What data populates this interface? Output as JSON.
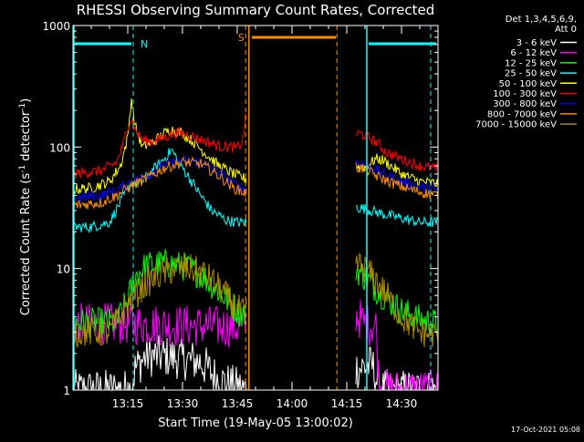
{
  "chart_data": {
    "type": "line",
    "title": "RHESSI Observing Summary Count Rates, Corrected",
    "xlabel": "Start Time (19-May-05 13:00:02)",
    "ylabel_parts": {
      "main": "Corrected Count Rate (s",
      "sup": "-1",
      "mid": " detector",
      "sup2": "-1",
      "end": ")"
    },
    "yscale": "log",
    "ylim": [
      1,
      1000
    ],
    "xlim_minutes": [
      0,
      100
    ],
    "x_ticks": [
      {
        "m": 15,
        "label": "13:15"
      },
      {
        "m": 30,
        "label": "13:30"
      },
      {
        "m": 45,
        "label": "13:45"
      },
      {
        "m": 60,
        "label": "14:00"
      },
      {
        "m": 75,
        "label": "14:15"
      },
      {
        "m": 90,
        "label": "14:30"
      }
    ],
    "y_ticks": [
      {
        "v": 1,
        "label": "1"
      },
      {
        "v": 10,
        "label": "10"
      },
      {
        "v": 100,
        "label": "100"
      },
      {
        "v": 1000,
        "label": "1000"
      }
    ],
    "legend_header": [
      "Det 1,3,4,5,6,9,",
      "Att 0"
    ],
    "legend_position": "top-right, outside plot",
    "gap_minutes": [
      47.5,
      77.5
    ],
    "series": [
      {
        "name": "3 - 6 keV",
        "color": "#ffffff",
        "points": [
          [
            0,
            1.0
          ],
          [
            16,
            1.0
          ],
          [
            17,
            1.5
          ],
          [
            20,
            1.9
          ],
          [
            25,
            1.9
          ],
          [
            30,
            1.8
          ],
          [
            35,
            1.7
          ],
          [
            40,
            1.2
          ],
          [
            47,
            1.0
          ],
          [
            77.5,
            1.5
          ],
          [
            82,
            1.6
          ],
          [
            84,
            1.0
          ],
          [
            100,
            1.0
          ]
        ]
      },
      {
        "name": "6 - 12 keV",
        "color": "#ff00ff",
        "points": [
          [
            0,
            3.5
          ],
          [
            15,
            3.5
          ],
          [
            30,
            3.4
          ],
          [
            45,
            3.3
          ],
          [
            47,
            3.5
          ],
          [
            77.5,
            4.2
          ],
          [
            80,
            3.5
          ],
          [
            83,
            3.4
          ],
          [
            84,
            1.0
          ],
          [
            100,
            1.0
          ]
        ]
      },
      {
        "name": "12 - 25 keV",
        "color": "#00ff00",
        "points": [
          [
            0,
            3.6
          ],
          [
            12,
            3.6
          ],
          [
            15,
            5.5
          ],
          [
            17,
            8.5
          ],
          [
            20,
            10.5
          ],
          [
            25,
            11
          ],
          [
            30,
            10.5
          ],
          [
            35,
            9
          ],
          [
            40,
            6.5
          ],
          [
            45,
            4.5
          ],
          [
            47,
            4.2
          ],
          [
            77.5,
            10
          ],
          [
            80,
            8.5
          ],
          [
            85,
            6
          ],
          [
            90,
            4.5
          ],
          [
            95,
            3.8
          ],
          [
            100,
            3.5
          ]
        ]
      },
      {
        "name": "25 - 50 keV",
        "color": "#00ffff",
        "points": [
          [
            0,
            22
          ],
          [
            5,
            22
          ],
          [
            10,
            24
          ],
          [
            14,
            40
          ],
          [
            16,
            52
          ],
          [
            18,
            48
          ],
          [
            22,
            65
          ],
          [
            25,
            80
          ],
          [
            27,
            95
          ],
          [
            29,
            75
          ],
          [
            32,
            55
          ],
          [
            35,
            40
          ],
          [
            38,
            30
          ],
          [
            42,
            25
          ],
          [
            45,
            24
          ],
          [
            47,
            24
          ],
          [
            77.5,
            32
          ],
          [
            80,
            31
          ],
          [
            85,
            28
          ],
          [
            90,
            26
          ],
          [
            95,
            24
          ],
          [
            100,
            24
          ]
        ]
      },
      {
        "name": "50 - 100 keV",
        "color": "#ffff00",
        "points": [
          [
            0,
            45
          ],
          [
            5,
            46
          ],
          [
            10,
            52
          ],
          [
            13,
            70
          ],
          [
            15,
            120
          ],
          [
            16,
            250
          ],
          [
            17,
            150
          ],
          [
            19,
            100
          ],
          [
            22,
            110
          ],
          [
            25,
            130
          ],
          [
            27,
            140
          ],
          [
            30,
            130
          ],
          [
            33,
            110
          ],
          [
            36,
            90
          ],
          [
            40,
            70
          ],
          [
            44,
            60
          ],
          [
            47,
            55
          ],
          [
            77.5,
            70
          ],
          [
            80,
            68
          ],
          [
            83,
            80
          ],
          [
            85,
            78
          ],
          [
            90,
            60
          ],
          [
            95,
            52
          ],
          [
            100,
            50
          ]
        ]
      },
      {
        "name": "100 - 300 keV",
        "color": "#ff0000",
        "points": [
          [
            0,
            60
          ],
          [
            8,
            64
          ],
          [
            12,
            75
          ],
          [
            14,
            110
          ],
          [
            15,
            150
          ],
          [
            16,
            170
          ],
          [
            17,
            140
          ],
          [
            19,
            115
          ],
          [
            22,
            110
          ],
          [
            25,
            120
          ],
          [
            28,
            130
          ],
          [
            31,
            128
          ],
          [
            34,
            118
          ],
          [
            37,
            110
          ],
          [
            40,
            102
          ],
          [
            43,
            100
          ],
          [
            45,
            98
          ],
          [
            46.5,
            110
          ],
          [
            47.2,
            170
          ],
          [
            77.5,
            130
          ],
          [
            80,
            125
          ],
          [
            83,
            110
          ],
          [
            86,
            90
          ],
          [
            90,
            80
          ],
          [
            95,
            70
          ],
          [
            100,
            66
          ]
        ]
      },
      {
        "name": "300 - 800 keV",
        "color": "#0000ff",
        "points": [
          [
            0,
            38
          ],
          [
            8,
            40
          ],
          [
            12,
            44
          ],
          [
            15,
            50
          ],
          [
            20,
            58
          ],
          [
            25,
            70
          ],
          [
            30,
            77
          ],
          [
            35,
            75
          ],
          [
            40,
            62
          ],
          [
            44,
            50
          ],
          [
            47,
            45
          ],
          [
            77.5,
            75
          ],
          [
            80,
            72
          ],
          [
            84,
            62
          ],
          [
            88,
            55
          ],
          [
            92,
            50
          ],
          [
            96,
            46
          ],
          [
            100,
            44
          ]
        ]
      },
      {
        "name": "800 - 7000 keV",
        "color": "#ff8c00",
        "points": [
          [
            0,
            33
          ],
          [
            8,
            35
          ],
          [
            12,
            40
          ],
          [
            15,
            46
          ],
          [
            20,
            55
          ],
          [
            25,
            67
          ],
          [
            30,
            75
          ],
          [
            35,
            73
          ],
          [
            40,
            58
          ],
          [
            44,
            46
          ],
          [
            47,
            42
          ],
          [
            77.5,
            68
          ],
          [
            80,
            66
          ],
          [
            84,
            56
          ],
          [
            88,
            50
          ],
          [
            92,
            45
          ],
          [
            96,
            42
          ],
          [
            100,
            40
          ]
        ]
      },
      {
        "name": "7000 - 15000 keV",
        "color": "#b08a00",
        "points": [
          [
            0,
            3.0
          ],
          [
            10,
            3.0
          ],
          [
            14,
            4.5
          ],
          [
            17,
            6
          ],
          [
            20,
            7.5
          ],
          [
            24,
            9
          ],
          [
            28,
            10
          ],
          [
            32,
            10
          ],
          [
            36,
            9
          ],
          [
            40,
            7
          ],
          [
            44,
            5
          ],
          [
            47,
            4.2
          ],
          [
            77.5,
            11
          ],
          [
            80,
            10
          ],
          [
            83,
            8
          ],
          [
            86,
            6
          ],
          [
            90,
            4
          ],
          [
            95,
            3
          ],
          [
            100,
            2.8
          ]
        ]
      }
    ],
    "annotations": [
      {
        "text": "N",
        "color": "#00ffff"
      },
      {
        "text": "S",
        "color": "#ff8c00"
      }
    ],
    "footer": "17-Oct-2021 05:08"
  }
}
